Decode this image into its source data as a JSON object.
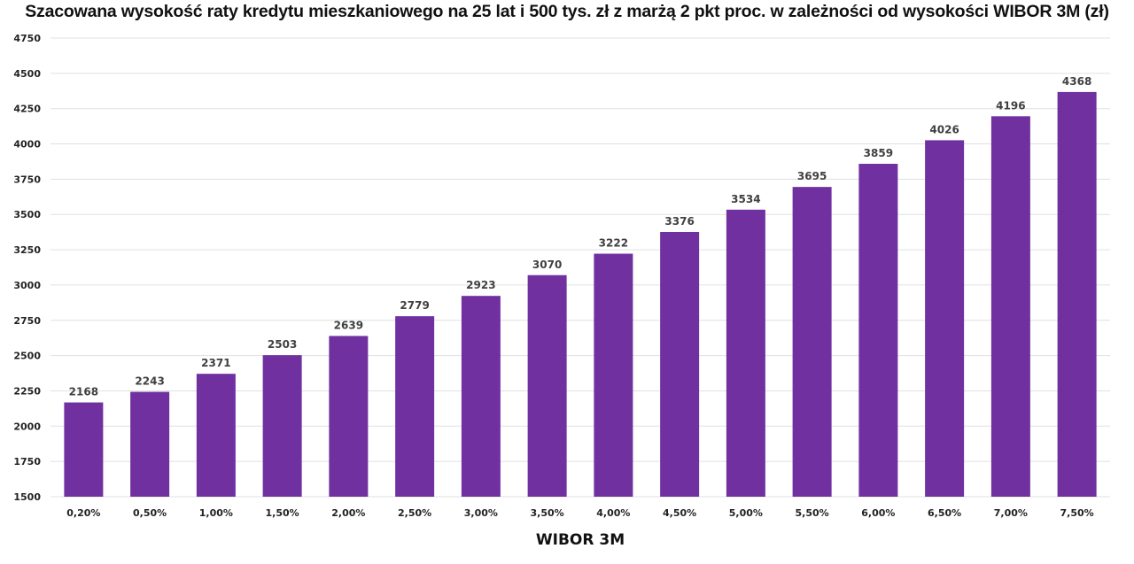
{
  "chart_data": {
    "type": "bar",
    "title": "Szacowana wysokość raty kredytu mieszkaniowego na 25 lat i 500 tys. zł z marżą 2 pkt proc. w zależności od wysokości WIBOR 3M (zł)",
    "xlabel": "WIBOR 3M",
    "ylabel": "",
    "categories": [
      "0,20%",
      "0,50%",
      "1,00%",
      "1,50%",
      "2,00%",
      "2,50%",
      "3,00%",
      "3,50%",
      "4,00%",
      "4,50%",
      "5,00%",
      "5,50%",
      "6,00%",
      "6,50%",
      "7,00%",
      "7,50%"
    ],
    "values": [
      2168,
      2243,
      2371,
      2503,
      2639,
      2779,
      2923,
      3070,
      3222,
      3376,
      3534,
      3695,
      3859,
      4026,
      4196,
      4368
    ],
    "ylim": [
      1500,
      4750
    ],
    "yticks": [
      1500,
      1750,
      2000,
      2250,
      2500,
      2750,
      3000,
      3250,
      3500,
      3750,
      4000,
      4250,
      4500,
      4750
    ],
    "grid": true,
    "data_labels": true,
    "bar_color": "#7030a0"
  }
}
